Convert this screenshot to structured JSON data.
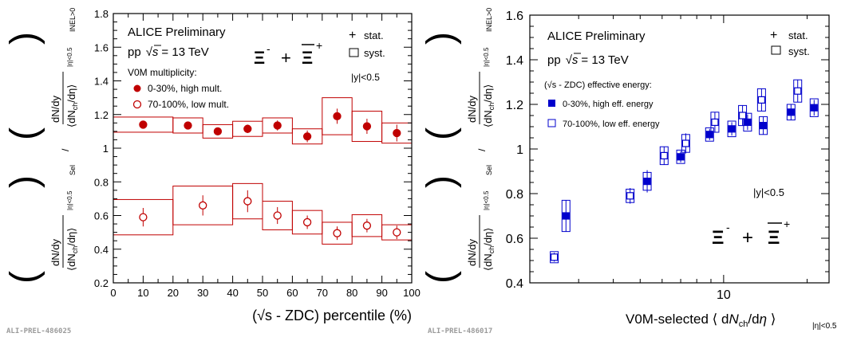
{
  "chart_data": [
    {
      "type": "scatter",
      "panel": "left",
      "experiment": "ALICE Preliminary",
      "system": "pp",
      "energy": "= 13 TeV",
      "particle": "Ξ⁻ + Ξ̄⁺",
      "selector": "V0M multiplicity:",
      "rapidity": "|y|<0.5",
      "xlabel": "(√s - ZDC) percentile (%)",
      "ylabel_upper": "dN/dy / ⟨dNch/dη⟩ |η|<0.5, Sel",
      "ylabel_lower": "dN/dy / ⟨dNch/dη⟩ |η|<0.5, INEL>0",
      "xlim": [
        0,
        100
      ],
      "ylim": [
        0.2,
        1.8
      ],
      "xticks": [
        0,
        10,
        20,
        30,
        40,
        50,
        60,
        70,
        80,
        90,
        100
      ],
      "yticks": [
        0.2,
        0.4,
        0.6,
        0.8,
        1,
        1.2,
        1.4,
        1.6,
        1.8
      ],
      "legend_stat": "stat.",
      "legend_syst": "syst.",
      "series": [
        {
          "name": "0-30%, high mult.",
          "marker": "filled-circle",
          "color": "#c00000",
          "points": [
            {
              "x": 10,
              "y": 1.14,
              "stat": 0.015,
              "syst": 0.045,
              "xlo": 0,
              "xhi": 20
            },
            {
              "x": 25,
              "y": 1.135,
              "stat": 0.015,
              "syst": 0.045,
              "xlo": 20,
              "xhi": 30
            },
            {
              "x": 35,
              "y": 1.1,
              "stat": 0.02,
              "syst": 0.04,
              "xlo": 30,
              "xhi": 40
            },
            {
              "x": 45,
              "y": 1.115,
              "stat": 0.025,
              "syst": 0.045,
              "xlo": 40,
              "xhi": 50
            },
            {
              "x": 55,
              "y": 1.135,
              "stat": 0.03,
              "syst": 0.045,
              "xlo": 50,
              "xhi": 60
            },
            {
              "x": 65,
              "y": 1.07,
              "stat": 0.035,
              "syst": 0.045,
              "xlo": 60,
              "xhi": 70
            },
            {
              "x": 75,
              "y": 1.19,
              "stat": 0.045,
              "syst": 0.11,
              "xlo": 70,
              "xhi": 80
            },
            {
              "x": 85,
              "y": 1.13,
              "stat": 0.045,
              "syst": 0.09,
              "xlo": 80,
              "xhi": 90
            },
            {
              "x": 95,
              "y": 1.09,
              "stat": 0.05,
              "syst": 0.06,
              "xlo": 90,
              "xhi": 100
            }
          ]
        },
        {
          "name": "70-100%, low mult.",
          "marker": "open-circle",
          "color": "#c00000",
          "points": [
            {
              "x": 10,
              "y": 0.59,
              "stat": 0.055,
              "syst": 0.105,
              "xlo": 0,
              "xhi": 20
            },
            {
              "x": 30,
              "y": 0.66,
              "stat": 0.06,
              "syst": 0.115,
              "xlo": 20,
              "xhi": 40
            },
            {
              "x": 45,
              "y": 0.685,
              "stat": 0.065,
              "syst": 0.105,
              "xlo": 40,
              "xhi": 50
            },
            {
              "x": 55,
              "y": 0.6,
              "stat": 0.05,
              "syst": 0.085,
              "xlo": 50,
              "xhi": 60
            },
            {
              "x": 65,
              "y": 0.56,
              "stat": 0.04,
              "syst": 0.07,
              "xlo": 60,
              "xhi": 70
            },
            {
              "x": 75,
              "y": 0.495,
              "stat": 0.04,
              "syst": 0.065,
              "xlo": 70,
              "xhi": 80
            },
            {
              "x": 85,
              "y": 0.54,
              "stat": 0.04,
              "syst": 0.065,
              "xlo": 80,
              "xhi": 90
            },
            {
              "x": 95,
              "y": 0.5,
              "stat": 0.04,
              "syst": 0.045,
              "xlo": 90,
              "xhi": 100
            }
          ]
        }
      ]
    },
    {
      "type": "scatter",
      "panel": "right",
      "experiment": "ALICE Preliminary",
      "system": "pp",
      "energy": "= 13 TeV",
      "particle": "Ξ⁻ + Ξ̄⁺",
      "selector": "(√s - ZDC) effective energy:",
      "rapidity": "|y|<0.5",
      "xlabel": "V0M-selected ⟨ dNch/dη ⟩ |η|<0.5",
      "ylabel_upper": "dN/dy / ⟨dNch/dη⟩ |η|<0.5, Sel",
      "ylabel_lower": "dN/dy / ⟨dNch/dη⟩ |η|<0.5, INEL>0",
      "xscale": "log",
      "xlim": [
        2,
        24
      ],
      "ylim": [
        0.4,
        1.6
      ],
      "xticks": [
        10
      ],
      "yticks": [
        0.4,
        0.6,
        0.8,
        1,
        1.2,
        1.4,
        1.6
      ],
      "legend_stat": "stat.",
      "legend_syst": "syst.",
      "series": [
        {
          "name": "0-30%, high eff. energy",
          "marker": "filled-square",
          "color": "#0000cc",
          "points": [
            {
              "x": 2.7,
              "y": 0.7,
              "stat": 0.07,
              "syst": 0.07
            },
            {
              "x": 5.3,
              "y": 0.855,
              "stat": 0.05,
              "syst": 0.04
            },
            {
              "x": 7.0,
              "y": 0.965,
              "stat": 0.025,
              "syst": 0.03
            },
            {
              "x": 8.9,
              "y": 1.065,
              "stat": 0.025,
              "syst": 0.03
            },
            {
              "x": 10.7,
              "y": 1.09,
              "stat": 0.03,
              "syst": 0.035
            },
            {
              "x": 12.2,
              "y": 1.12,
              "stat": 0.035,
              "syst": 0.04
            },
            {
              "x": 13.9,
              "y": 1.105,
              "stat": 0.04,
              "syst": 0.04
            },
            {
              "x": 17.5,
              "y": 1.165,
              "stat": 0.035,
              "syst": 0.035
            },
            {
              "x": 21.2,
              "y": 1.185,
              "stat": 0.035,
              "syst": 0.04
            }
          ]
        },
        {
          "name": "70-100%, low eff. energy",
          "marker": "open-square",
          "color": "#0000cc",
          "points": [
            {
              "x": 2.45,
              "y": 0.515,
              "stat": 0.02,
              "syst": 0.025
            },
            {
              "x": 4.6,
              "y": 0.79,
              "stat": 0.035,
              "syst": 0.03
            },
            {
              "x": 6.1,
              "y": 0.97,
              "stat": 0.04,
              "syst": 0.04
            },
            {
              "x": 7.3,
              "y": 1.025,
              "stat": 0.045,
              "syst": 0.04
            },
            {
              "x": 9.3,
              "y": 1.12,
              "stat": 0.045,
              "syst": 0.045
            },
            {
              "x": 11.7,
              "y": 1.15,
              "stat": 0.045,
              "syst": 0.045
            },
            {
              "x": 13.7,
              "y": 1.22,
              "stat": 0.05,
              "syst": 0.05
            },
            {
              "x": 18.5,
              "y": 1.26,
              "stat": 0.05,
              "syst": 0.05
            }
          ]
        }
      ]
    }
  ],
  "preliminary_ids": [
    "ALI-PREL-486025",
    "ALI-PREL-486017"
  ]
}
